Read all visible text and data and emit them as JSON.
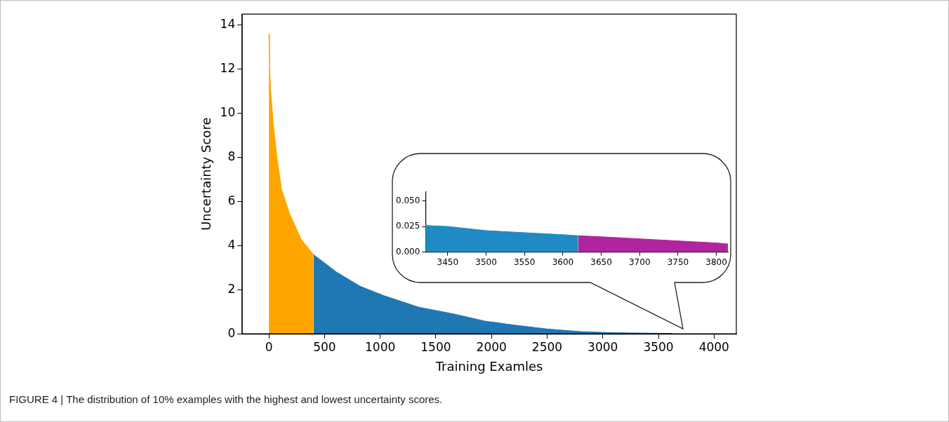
{
  "chart_data": [
    {
      "type": "area",
      "xlabel": "Training Examles",
      "ylabel": "Uncertainty Score",
      "xlim": [
        -240,
        4200
      ],
      "ylim": [
        0,
        14.5
      ],
      "xticks": [
        0,
        500,
        1000,
        1500,
        2000,
        2500,
        3000,
        3500,
        4000
      ],
      "yticks": [
        0,
        2,
        4,
        6,
        8,
        10,
        12,
        14
      ],
      "grid": false,
      "legend": false,
      "series": [
        {
          "color": "#ffa500",
          "x": [
            0,
            5,
            17,
            38,
            70,
            112,
            186,
            291,
            400
          ],
          "values": [
            13.6,
            12.3,
            11.0,
            9.6,
            8.1,
            6.6,
            5.45,
            4.28,
            3.6
          ]
        },
        {
          "color": "#1f77b4",
          "x": [
            400,
            608,
            818,
            1029,
            1346,
            1662,
            1937,
            2200,
            2500,
            2800,
            3100,
            3400,
            3620
          ],
          "values": [
            3.6,
            2.8,
            2.16,
            1.74,
            1.21,
            0.9,
            0.58,
            0.4,
            0.22,
            0.1,
            0.05,
            0.03,
            0.02
          ]
        }
      ],
      "annotations": [
        "FIGURE 4 | The distribution of 10% examples with the highest and lowest uncertainty scores."
      ]
    },
    {
      "type": "area",
      "xlim": [
        3421,
        3815
      ],
      "ylim": [
        0,
        0.059
      ],
      "xticks": [
        3450,
        3500,
        3550,
        3600,
        3650,
        3700,
        3750,
        3800
      ],
      "yticks": [
        {
          "value": 0,
          "label": "0.000"
        },
        0.025,
        {
          "value": 0.05,
          "label": "0.050"
        }
      ],
      "grid": false,
      "legend": false,
      "series": [
        {
          "color": "#1f8ac4",
          "x": [
            3421,
            3450,
            3500,
            3550,
            3600,
            3620
          ],
          "values": [
            0.026,
            0.025,
            0.021,
            0.019,
            0.017,
            0.016
          ]
        },
        {
          "color": "#b0249e",
          "x": [
            3620,
            3650,
            3700,
            3750,
            3800,
            3815
          ],
          "values": [
            0.016,
            0.015,
            0.013,
            0.011,
            0.009,
            0.008
          ]
        }
      ]
    }
  ]
}
